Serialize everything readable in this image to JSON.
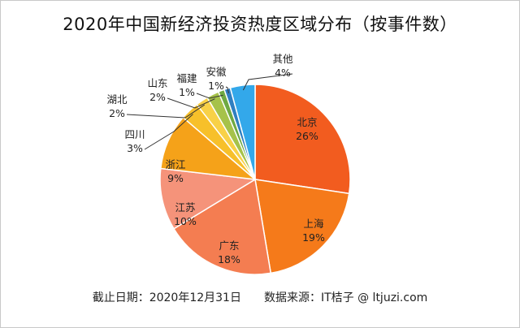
{
  "title": "2020年中国新经济投资热度区域分布（按事件数）",
  "footer": {
    "date_text": "截止日期：2020年12月31日",
    "source_text": "数据来源：IT桔子 @ ltjuzi.com"
  },
  "chart_data": {
    "type": "pie",
    "title": "2020年中国新经济投资热度区域分布（按事件数）",
    "slices": [
      {
        "label": "北京",
        "value": 26,
        "pct_label": "26%",
        "color": "#f25c1f"
      },
      {
        "label": "上海",
        "value": 19,
        "pct_label": "19%",
        "color": "#f57a1a"
      },
      {
        "label": "广东",
        "value": 18,
        "pct_label": "18%",
        "color": "#f47d51"
      },
      {
        "label": "江苏",
        "value": 10,
        "pct_label": "10%",
        "color": "#f5937a"
      },
      {
        "label": "浙江",
        "value": 9,
        "pct_label": "9%",
        "color": "#f5a219"
      },
      {
        "label": "四川",
        "value": 3,
        "pct_label": "3%",
        "color": "#f7c02a"
      },
      {
        "label": "湖北",
        "value": 2,
        "pct_label": "2%",
        "color": "#f8d147"
      },
      {
        "label": "山东",
        "value": 2,
        "pct_label": "2%",
        "color": "#a6c24a"
      },
      {
        "label": "福建",
        "value": 1,
        "pct_label": "1%",
        "color": "#6fa943"
      },
      {
        "label": "安徽",
        "value": 1,
        "pct_label": "1%",
        "color": "#2f7fc1"
      },
      {
        "label": "其他",
        "value": 4,
        "pct_label": "4%",
        "color": "#33a8ea"
      }
    ]
  }
}
